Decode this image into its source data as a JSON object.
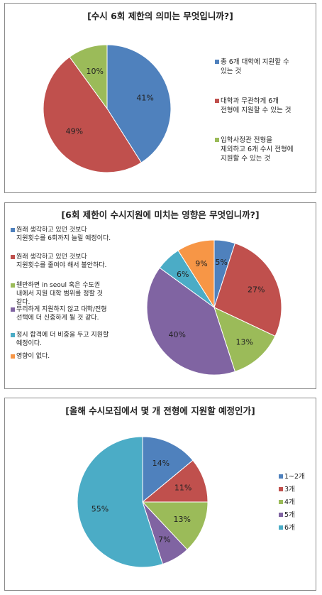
{
  "charts": [
    {
      "title": "[수시 6회 제한의 의미는 무엇입니까?]",
      "slices": [
        {
          "label": "총 6개 대학에 지원할 수\n있는 것",
          "value": 41,
          "pct_label": "41%",
          "color": "#4f81bd"
        },
        {
          "label": "대학과 무관하게 6개\n전형에 지원할 수 있는 것",
          "value": 49,
          "pct_label": "49%",
          "color": "#c0504d"
        },
        {
          "label": "입학사정관 전형을\n제외하고 6개 수시 전형에\n지원할 수 있는 것",
          "value": 10,
          "pct_label": "10%",
          "color": "#9bbb59"
        }
      ]
    },
    {
      "title": "[6회 제한이 수시지원에 미치는 영향은 무엇입니까?]",
      "slices": [
        {
          "label": "원래 생각하고 있던 것보다\n지원횟수를 6회까지 늘릴 예정이다.",
          "value": 5,
          "pct_label": "5%",
          "color": "#4f81bd"
        },
        {
          "label": "원래 생각하고 있던 것보다\n지원횟수를 줄여야 해서 불안하다.",
          "value": 27,
          "pct_label": "27%",
          "color": "#c0504d"
        },
        {
          "label": "웬만하면 in seoul 혹은 수도권\n내에서 지원 대학 범위를 정할 것\n같다.",
          "value": 13,
          "pct_label": "13%",
          "color": "#9bbb59"
        },
        {
          "label": "무리하게 지원하지 않고 대학/전형\n선택에 더 신중하게 될 것 같다.",
          "value": 40,
          "pct_label": "40%",
          "color": "#8064a2"
        },
        {
          "label": "정시 합격에 더 비중을 두고 지원할\n예정이다.",
          "value": 6,
          "pct_label": "6%",
          "color": "#4bacc6"
        },
        {
          "label": "영향이 없다.",
          "value": 9,
          "pct_label": "9%",
          "color": "#f79646"
        }
      ]
    },
    {
      "title": "[올해 수시모집에서 몇 개 전형에 지원할 예정인가]",
      "slices": [
        {
          "label": "1~2개",
          "value": 14,
          "pct_label": "14%",
          "color": "#4f81bd"
        },
        {
          "label": "3개",
          "value": 11,
          "pct_label": "11%",
          "color": "#c0504d"
        },
        {
          "label": "4개",
          "value": 13,
          "pct_label": "13%",
          "color": "#9bbb59"
        },
        {
          "label": "5개",
          "value": 7,
          "pct_label": "7%",
          "color": "#8064a2"
        },
        {
          "label": "6개",
          "value": 55,
          "pct_label": "55%",
          "color": "#4bacc6"
        }
      ]
    }
  ],
  "chart_data": [
    {
      "type": "pie",
      "title": "[수시 6회 제한의 의미는 무엇입니까?]",
      "categories": [
        "총 6개 대학에 지원할 수 있는 것",
        "대학과 무관하게 6개 전형에 지원할 수 있는 것",
        "입학사정관 전형을 제외하고 6개 수시 전형에 지원할 수 있는 것"
      ],
      "values": [
        41,
        49,
        10
      ],
      "legend": "right"
    },
    {
      "type": "pie",
      "title": "[6회 제한이 수시지원에 미치는 영향은 무엇입니까?]",
      "categories": [
        "원래 생각하고 있던 것보다 지원횟수를 6회까지 늘릴 예정이다.",
        "원래 생각하고 있던 것보다 지원횟수를 줄여야 해서 불안하다.",
        "웬만하면 in seoul 혹은 수도권 내에서 지원 대학 범위를 정할 것 같다.",
        "무리하게 지원하지 않고 대학/전형 선택에 더 신중하게 될 것 같다.",
        "정시 합격에 더 비중을 두고 지원할 예정이다.",
        "영향이 없다."
      ],
      "values": [
        5,
        27,
        13,
        40,
        6,
        9
      ],
      "legend": "left"
    },
    {
      "type": "pie",
      "title": "[올해 수시모집에서 몇 개 전형에 지원할 예정인가]",
      "categories": [
        "1~2개",
        "3개",
        "4개",
        "5개",
        "6개"
      ],
      "values": [
        14,
        11,
        13,
        7,
        55
      ],
      "legend": "right"
    }
  ]
}
